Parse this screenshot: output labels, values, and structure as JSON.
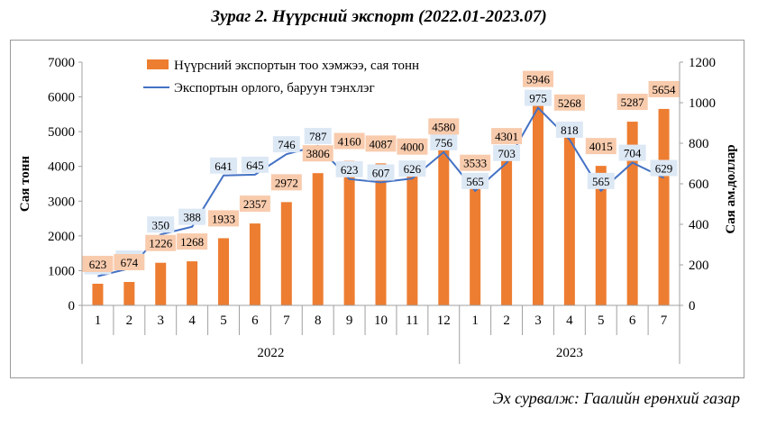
{
  "chart_data": {
    "type": "bar+line",
    "title": "Зураг 2. Нүүрсний экспорт (2022.01-2023.07)",
    "source": "Эх сурвалж: Гаалийн ерөнхий газар",
    "categories": [
      "1",
      "2",
      "3",
      "4",
      "5",
      "6",
      "7",
      "8",
      "9",
      "10",
      "11",
      "12",
      "1",
      "2",
      "3",
      "4",
      "5",
      "6",
      "7"
    ],
    "groups": [
      {
        "label": "2022",
        "count": 12
      },
      {
        "label": "2023",
        "count": 7
      }
    ],
    "series": [
      {
        "name": "Нүүрсний экспортын  тоо хэмжээ, сая тонн",
        "type": "bar",
        "axis": "left",
        "color": "#ED7D31",
        "values": [
          623,
          674,
          1226,
          1268,
          1933,
          2357,
          2972,
          3806,
          4160,
          4087,
          4000,
          4580,
          3533,
          4301,
          5946,
          5268,
          4015,
          5287,
          5654
        ]
      },
      {
        "name": "Экспортын орлого, баруун тэнхлэг",
        "type": "line",
        "axis": "right",
        "color": "#4472C4",
        "values": [
          144,
          182,
          350,
          388,
          641,
          645,
          746,
          787,
          623,
          607,
          626,
          756,
          565,
          703,
          975,
          818,
          565,
          704,
          629
        ]
      }
    ],
    "ylabel_left": "Сая тонн",
    "ylabel_right": "Сая ам.доллар",
    "ylim_left": [
      0,
      7000
    ],
    "ylim_right": [
      0,
      1200
    ],
    "yticks_left": [
      "0",
      "1000",
      "2000",
      "3000",
      "4000",
      "5000",
      "6000",
      "7000"
    ],
    "yticks_right": [
      "0",
      "200",
      "400",
      "600",
      "800",
      "1000",
      "1200"
    ]
  }
}
